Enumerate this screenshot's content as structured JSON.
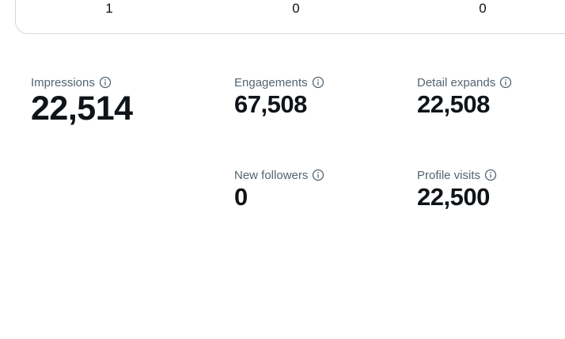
{
  "top_row": {
    "counts": [
      "1",
      "0",
      "0"
    ]
  },
  "metrics": {
    "impressions": {
      "label": "Impressions",
      "value": "22,514"
    },
    "engagements": {
      "label": "Engagements",
      "value": "67,508"
    },
    "detail_expands": {
      "label": "Detail expands",
      "value": "22,508"
    },
    "new_followers": {
      "label": "New followers",
      "value": "0"
    },
    "profile_visits": {
      "label": "Profile visits",
      "value": "22,500"
    }
  },
  "icons": {
    "info": "info-circle-icon"
  },
  "colors": {
    "text_primary": "#0f1419",
    "text_secondary": "#536471",
    "border": "#cfd9de"
  }
}
